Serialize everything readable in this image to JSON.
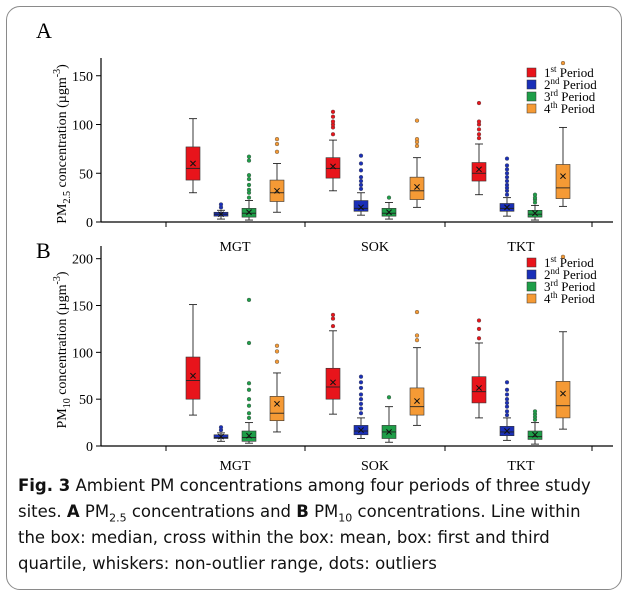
{
  "colors": {
    "periods": [
      "#e8141b",
      "#1a2fb8",
      "#1e9e48",
      "#f59a35"
    ],
    "cross": "#111111",
    "axis": "#000000"
  },
  "caption": {
    "fig_label": "Fig. 3",
    "text_1": " Ambient PM concentrations among four periods of three study sites. ",
    "a": "A",
    "pm25": " PM",
    "sub25": "2.5",
    "text_2": " concentrations and ",
    "b": "B",
    "pm10": " PM",
    "sub10": "10",
    "text_3": " concentrations. Line within the box: median, cross within the box: mean, box: first and third quartile, whiskers: non-outlier range, dots: outliers"
  },
  "chart_data": [
    {
      "type": "box",
      "panel_label": "A",
      "ylabel": "PM2.5 concentration (µgm-3)",
      "ylabel_parts": [
        "PM",
        "2.5",
        " concentration (µgm",
        "-3",
        ")"
      ],
      "ylim": [
        0,
        160
      ],
      "yticks": [
        "0",
        "50",
        "100",
        "150"
      ],
      "categories": [
        "MGT",
        "SOK",
        "TKT"
      ],
      "legend": [
        {
          "n": "1",
          "sup": "st",
          "label": " Period"
        },
        {
          "n": "2",
          "sup": "nd",
          "label": " Period"
        },
        {
          "n": "3",
          "sup": "rd",
          "label": " Period"
        },
        {
          "n": "4",
          "sup": "th",
          "label": " Period"
        }
      ],
      "boxes": [
        [
          {
            "period": 1,
            "min": 30,
            "q1": 43,
            "median": 55,
            "q3": 77,
            "max": 106,
            "mean": 60,
            "outliers": []
          },
          {
            "period": 2,
            "min": 3,
            "q1": 6,
            "median": 8,
            "q3": 10,
            "max": 12,
            "mean": 8,
            "outliers": [
              15,
              18
            ]
          },
          {
            "period": 3,
            "min": 2,
            "q1": 5,
            "median": 9,
            "q3": 14,
            "max": 22,
            "mean": 10,
            "outliers": [
              25,
              30,
              33,
              38,
              44,
              48,
              63,
              67
            ]
          },
          {
            "period": 4,
            "min": 10,
            "q1": 21,
            "median": 30,
            "q3": 43,
            "max": 60,
            "mean": 32,
            "outliers": [
              72,
              80,
              85
            ]
          }
        ],
        [
          {
            "period": 1,
            "min": 32,
            "q1": 45,
            "median": 55,
            "q3": 66,
            "max": 84,
            "mean": 57,
            "outliers": [
              90,
              97,
              100,
              103,
              108,
              113
            ]
          },
          {
            "period": 2,
            "min": 7,
            "q1": 11,
            "median": 14,
            "q3": 22,
            "max": 30,
            "mean": 15,
            "outliers": [
              34,
              38,
              42,
              46,
              53,
              60,
              68
            ]
          },
          {
            "period": 3,
            "min": 3,
            "q1": 6,
            "median": 9,
            "q3": 14,
            "max": 20,
            "mean": 10,
            "outliers": [
              25
            ]
          },
          {
            "period": 4,
            "min": 15,
            "q1": 23,
            "median": 32,
            "q3": 46,
            "max": 66,
            "mean": 36,
            "outliers": [
              78,
              82,
              85,
              104
            ]
          }
        ],
        [
          {
            "period": 1,
            "min": 28,
            "q1": 42,
            "median": 50,
            "q3": 61,
            "max": 80,
            "mean": 54,
            "outliers": [
              86,
              90,
              95,
              100,
              103,
              122
            ]
          },
          {
            "period": 2,
            "min": 6,
            "q1": 11,
            "median": 14,
            "q3": 19,
            "max": 25,
            "mean": 15,
            "outliers": [
              28,
              32,
              35,
              38,
              42,
              46,
              50,
              54,
              58,
              65
            ]
          },
          {
            "period": 3,
            "min": 2,
            "q1": 5,
            "median": 8,
            "q3": 12,
            "max": 17,
            "mean": 9,
            "outliers": [
              20,
              23,
              25,
              28
            ]
          },
          {
            "period": 4,
            "min": 16,
            "q1": 24,
            "median": 35,
            "q3": 59,
            "max": 97,
            "mean": 47,
            "outliers": [
              163
            ]
          }
        ]
      ]
    },
    {
      "type": "box",
      "panel_label": "B",
      "ylabel": "PM10 concentration (µgm-3)",
      "ylabel_parts": [
        "PM",
        "10",
        " concentration (µgm",
        "-3",
        ")"
      ],
      "ylim": [
        0,
        205
      ],
      "yticks": [
        "0",
        "50",
        "100",
        "150",
        "200"
      ],
      "categories": [
        "MGT",
        "SOK",
        "TKT"
      ],
      "legend": [
        {
          "n": "1",
          "sup": "st",
          "label": " Period"
        },
        {
          "n": "2",
          "sup": "nd",
          "label": " Period"
        },
        {
          "n": "3",
          "sup": "rd",
          "label": " Period"
        },
        {
          "n": "4",
          "sup": "th",
          "label": " Period"
        }
      ],
      "boxes": [
        [
          {
            "period": 1,
            "min": 33,
            "q1": 50,
            "median": 70,
            "q3": 95,
            "max": 151,
            "mean": 75,
            "outliers": []
          },
          {
            "period": 2,
            "min": 5,
            "q1": 8,
            "median": 9,
            "q3": 12,
            "max": 14,
            "mean": 10,
            "outliers": [
              17,
              20
            ]
          },
          {
            "period": 3,
            "min": 3,
            "q1": 5,
            "median": 9,
            "q3": 16,
            "max": 25,
            "mean": 11,
            "outliers": [
              30,
              35,
              43,
              50,
              60,
              67,
              110,
              156
            ]
          },
          {
            "period": 4,
            "min": 15,
            "q1": 27,
            "median": 35,
            "q3": 53,
            "max": 78,
            "mean": 45,
            "outliers": [
              90,
              101,
              107
            ]
          }
        ],
        [
          {
            "period": 1,
            "min": 34,
            "q1": 50,
            "median": 63,
            "q3": 83,
            "max": 123,
            "mean": 68,
            "outliers": [
              128,
              136,
              140
            ]
          },
          {
            "period": 2,
            "min": 8,
            "q1": 12,
            "median": 16,
            "q3": 22,
            "max": 30,
            "mean": 17,
            "outliers": [
              35,
              40,
              45,
              50,
              55,
              62,
              68,
              74
            ]
          },
          {
            "period": 3,
            "min": 4,
            "q1": 8,
            "median": 15,
            "q3": 22,
            "max": 42,
            "mean": 15,
            "outliers": [
              52
            ]
          },
          {
            "period": 4,
            "min": 22,
            "q1": 33,
            "median": 42,
            "q3": 62,
            "max": 105,
            "mean": 48,
            "outliers": [
              113,
              118,
              143
            ]
          }
        ],
        [
          {
            "period": 1,
            "min": 30,
            "q1": 46,
            "median": 58,
            "q3": 74,
            "max": 110,
            "mean": 62,
            "outliers": [
              115,
              125,
              134
            ]
          },
          {
            "period": 2,
            "min": 6,
            "q1": 11,
            "median": 15,
            "q3": 21,
            "max": 30,
            "mean": 16,
            "outliers": [
              33,
              37,
              42,
              46,
              50,
              55,
              60,
              68
            ]
          },
          {
            "period": 3,
            "min": 2,
            "q1": 7,
            "median": 10,
            "q3": 16,
            "max": 25,
            "mean": 12,
            "outliers": [
              28,
              31,
              34,
              37
            ]
          },
          {
            "period": 4,
            "min": 18,
            "q1": 30,
            "median": 43,
            "q3": 69,
            "max": 122,
            "mean": 56,
            "outliers": [
              202
            ]
          }
        ]
      ]
    }
  ]
}
